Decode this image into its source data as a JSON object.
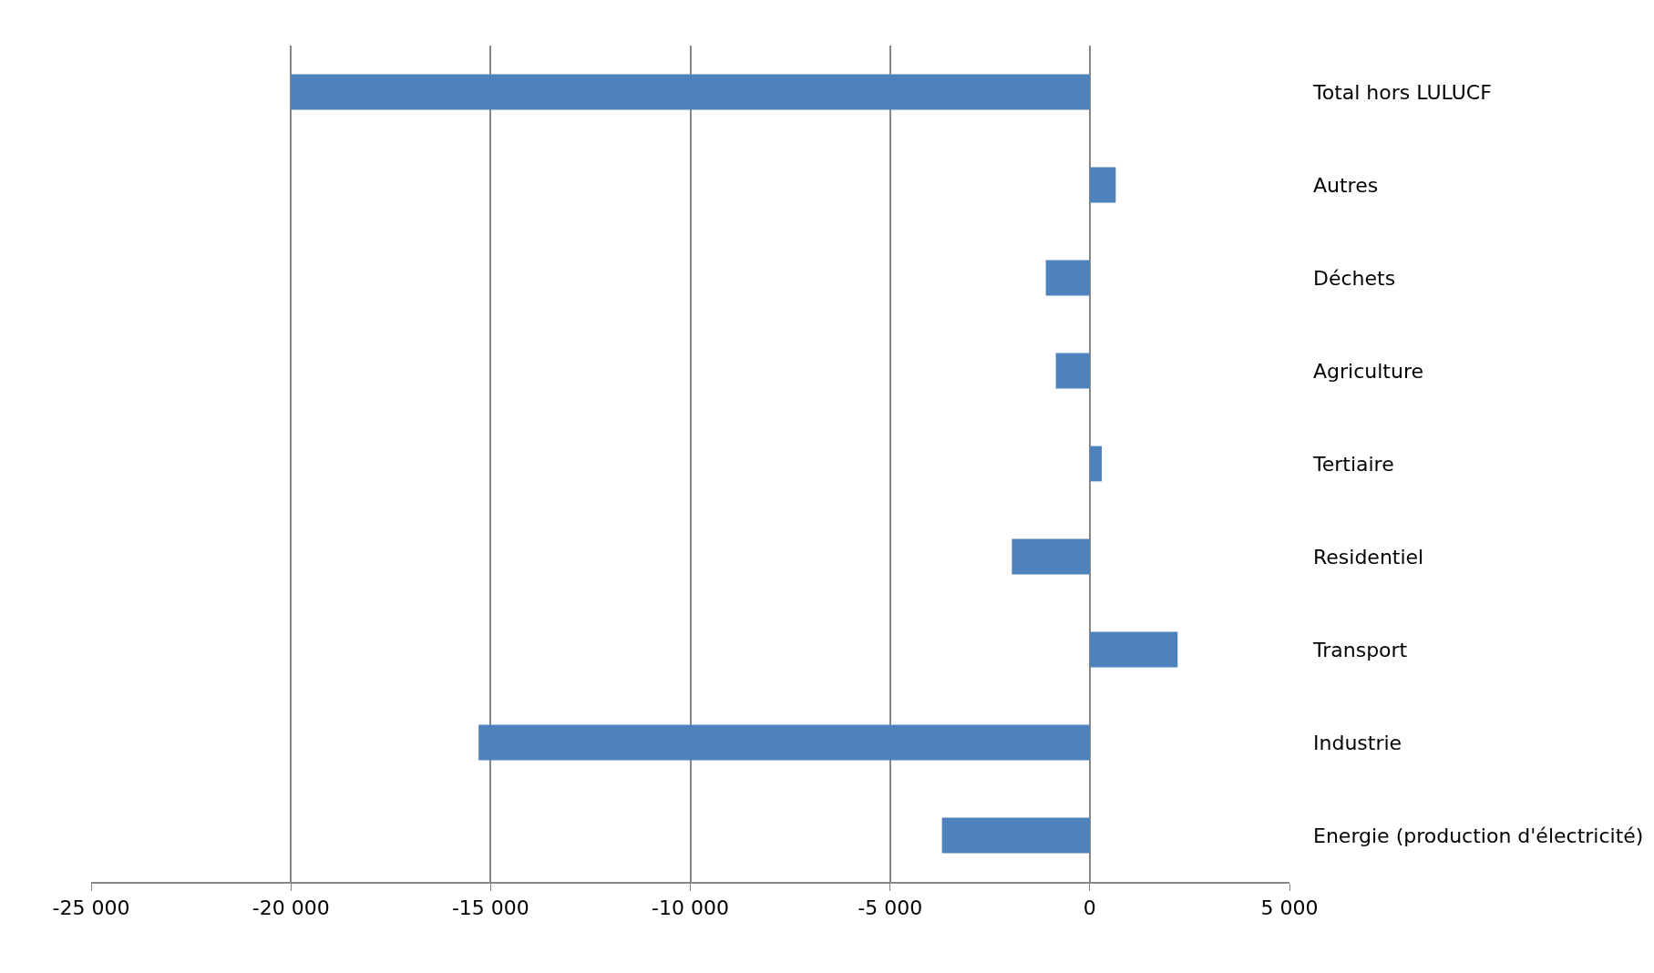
{
  "chart_data": {
    "type": "bar",
    "orientation": "horizontal",
    "categories": [
      "Total hors LULUCF",
      "Autres",
      "Déchets",
      "Agriculture",
      "Tertiaire",
      "Residentiel",
      "Transport",
      "Industrie",
      "Energie (production d'électricité)"
    ],
    "values": [
      -20000,
      650,
      -1100,
      -850,
      300,
      -1950,
      2200,
      -15300,
      -3700
    ],
    "color": "#4f81bd",
    "xlim": [
      -25000,
      5000
    ],
    "xticks": [
      {
        "value": -25000,
        "label": "-25 000"
      },
      {
        "value": -20000,
        "label": "-20 000"
      },
      {
        "value": -15000,
        "label": "-15 000"
      },
      {
        "value": -10000,
        "label": "-10 000"
      },
      {
        "value": -5000,
        "label": "-5 000"
      },
      0,
      {
        "value": 5000,
        "label": "5 000"
      }
    ],
    "grid": "x",
    "legend": false
  }
}
